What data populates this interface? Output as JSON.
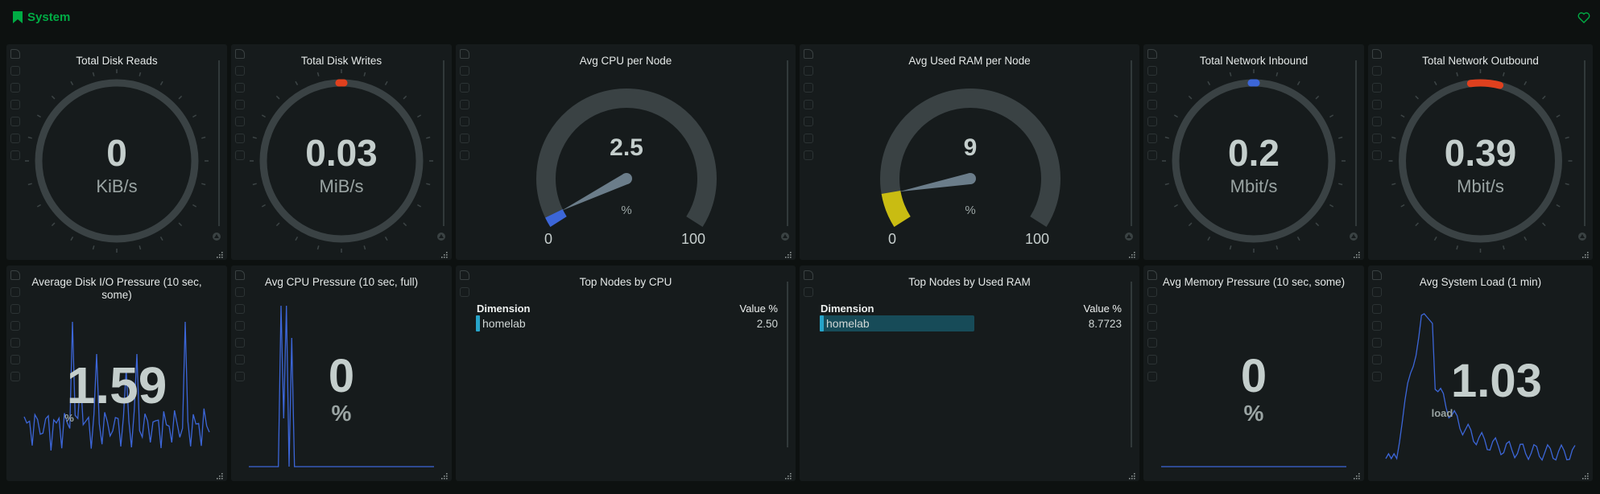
{
  "section": {
    "title": "System"
  },
  "gauges_ring": [
    {
      "title": "Total Disk Reads",
      "value": "0",
      "unit": "KiB/s",
      "fraction": 0.0,
      "marker_color": ""
    },
    {
      "title": "Total Disk Writes",
      "value": "0.03",
      "unit": "MiB/s",
      "fraction": 0.01,
      "marker_color": "#e0401e"
    },
    {
      "title": "Total Network Inbound",
      "value": "0.2",
      "unit": "Mbit/s",
      "fraction": 0.01,
      "marker_color": "#3c66d8"
    },
    {
      "title": "Total Network Outbound",
      "value": "0.39",
      "unit": "Mbit/s",
      "fraction": 0.04,
      "marker_color": "#e0401e"
    }
  ],
  "gauges_arc": [
    {
      "title": "Avg CPU per Node",
      "value": "2.5",
      "unit": "%",
      "min": "0",
      "max": "100",
      "fraction": 0.025,
      "fill_color": "#3c66d8"
    },
    {
      "title": "Avg Used RAM per Node",
      "value": "9",
      "unit": "%",
      "min": "0",
      "max": "100",
      "fraction": 0.09,
      "fill_color": "#c9bc12"
    }
  ],
  "sparks": [
    {
      "title": "Average Disk I/O Pressure (10 sec, some)",
      "value": "1.59",
      "unit": "%"
    },
    {
      "title": "Avg CPU Pressure (10 sec, full)",
      "value": "0",
      "unit": "%"
    },
    {
      "title": "Avg Memory Pressure (10 sec, some)",
      "value": "0",
      "unit": "%"
    },
    {
      "title": "Avg System Load (1 min)",
      "value": "1.03",
      "unit": "load"
    }
  ],
  "top_cpu": {
    "title": "Top Nodes by CPU",
    "col_dimension": "Dimension",
    "col_value": "Value %",
    "rows": [
      {
        "name": "homelab",
        "value": "2.50",
        "fraction": 0.0
      }
    ]
  },
  "top_ram": {
    "title": "Top Nodes by Used RAM",
    "col_dimension": "Dimension",
    "col_value": "Value %",
    "rows": [
      {
        "name": "homelab",
        "value": "8.7723",
        "fraction": 1.0
      }
    ]
  },
  "colors": {
    "accent": "#00ab44",
    "line": "#3c66d8",
    "track": "#3a4244"
  }
}
